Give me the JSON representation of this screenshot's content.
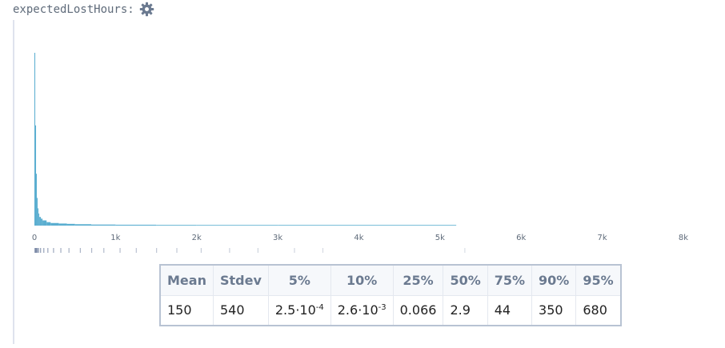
{
  "variable": {
    "name": "expectedLostHours:",
    "settings_icon": "gear-icon"
  },
  "chart_data": {
    "type": "histogram",
    "x_ticks": [
      "0",
      "1k",
      "2k",
      "3k",
      "4k",
      "5k",
      "6k",
      "7k",
      "8k"
    ],
    "xlim": [
      0,
      8000
    ],
    "bin_edges": [
      0,
      10,
      20,
      30,
      40,
      50,
      60,
      80,
      100,
      150,
      200,
      300,
      400,
      500,
      700,
      1000,
      1500,
      2000,
      3000,
      4000,
      5200
    ],
    "density": [
      1.0,
      0.58,
      0.3,
      0.16,
      0.1,
      0.07,
      0.05,
      0.04,
      0.03,
      0.02,
      0.015,
      0.012,
      0.01,
      0.008,
      0.006,
      0.005,
      0.004,
      0.003,
      0.002,
      0.0015
    ],
    "bar_color": "#5aaed0",
    "rug_samples": [
      2,
      5,
      10,
      18,
      30,
      45,
      70,
      110,
      160,
      230,
      320,
      420,
      560,
      700,
      850,
      1050,
      1250,
      1500,
      1750,
      2050,
      2400,
      2750,
      3200,
      3550,
      5300
    ],
    "rug_color": "#7a89a6"
  },
  "stats": {
    "headers": [
      "Mean",
      "Stdev",
      "5%",
      "10%",
      "25%",
      "50%",
      "75%",
      "90%",
      "95%"
    ],
    "values": [
      {
        "base": "150"
      },
      {
        "base": "540"
      },
      {
        "base": "2.5·10",
        "exp": "-4"
      },
      {
        "base": "2.6·10",
        "exp": "-3"
      },
      {
        "base": "0.066"
      },
      {
        "base": "2.9"
      },
      {
        "base": "44"
      },
      {
        "base": "350"
      },
      {
        "base": "680"
      }
    ]
  }
}
